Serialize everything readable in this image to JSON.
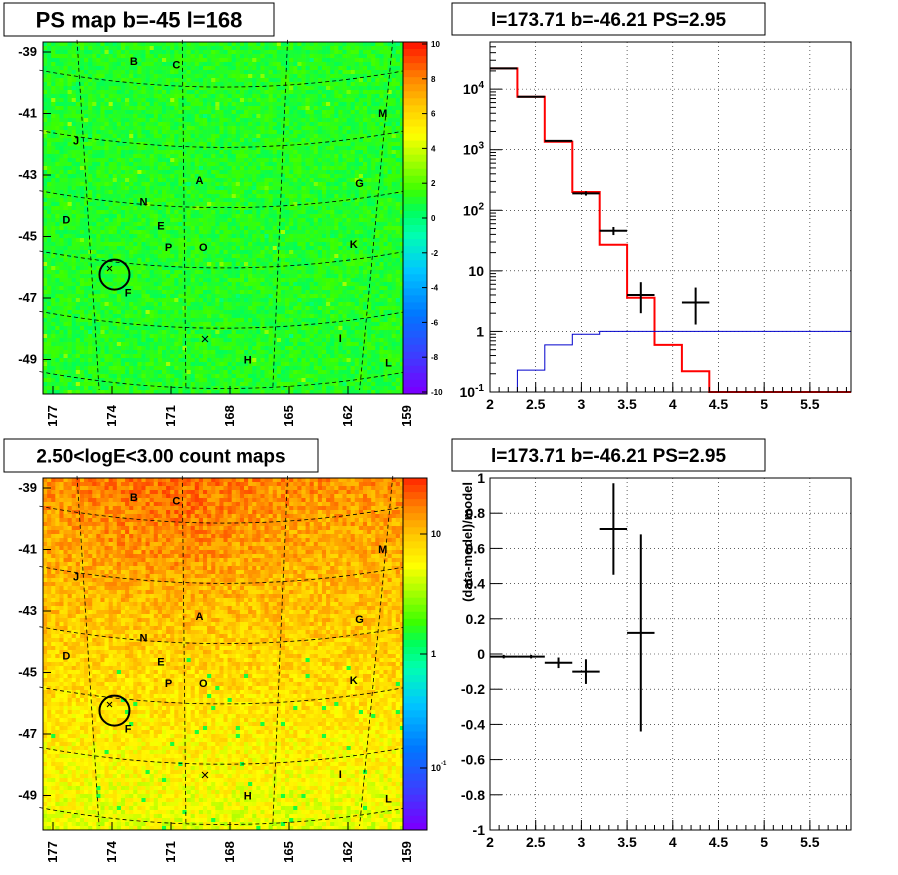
{
  "chart_data": [
    {
      "type": "heatmap",
      "title": "PS map b=-45 l=168",
      "x_tick_labels": [
        "177",
        "174",
        "171",
        "168",
        "165",
        "162",
        "159"
      ],
      "y_tick_labels": [
        "-39",
        "-41",
        "-43",
        "-45",
        "-47",
        "-49"
      ],
      "colorbar": {
        "min": -10,
        "max": 10,
        "scale": "linear",
        "tick_labels": [
          "10",
          "8",
          "6",
          "4",
          "2",
          "0",
          "-2",
          "-4",
          "-6",
          "-8",
          "-10"
        ]
      },
      "source_labels": [
        {
          "text": "B",
          "l": 172.6,
          "b": -39.2
        },
        {
          "text": "C",
          "l": 170.4,
          "b": -39.3
        },
        {
          "text": "M",
          "l": 159.7,
          "b": -40.9
        },
        {
          "text": "J",
          "l": 175.6,
          "b": -41.8
        },
        {
          "text": "A",
          "l": 169.2,
          "b": -43.1
        },
        {
          "text": "G",
          "l": 160.9,
          "b": -43.2
        },
        {
          "text": "N",
          "l": 172.1,
          "b": -43.8
        },
        {
          "text": "D",
          "l": 176.1,
          "b": -44.4
        },
        {
          "text": "E",
          "l": 171.2,
          "b": -44.6
        },
        {
          "text": "K",
          "l": 161.2,
          "b": -45.2
        },
        {
          "text": "P",
          "l": 170.8,
          "b": -45.3
        },
        {
          "text": "O",
          "l": 169.0,
          "b": -45.3
        },
        {
          "text": "F",
          "l": 172.9,
          "b": -46.8
        },
        {
          "text": "I",
          "l": 161.9,
          "b": -48.3
        },
        {
          "text": "H",
          "l": 166.7,
          "b": -49.0
        },
        {
          "text": "L",
          "l": 159.4,
          "b": -49.1
        }
      ],
      "marked_position": {
        "l": 173.71,
        "b": -46.21
      }
    },
    {
      "type": "line",
      "title": "l=173.71 b=-46.21 PS=2.95",
      "x_tick_labels": [
        "2",
        "2.5",
        "3",
        "3.5",
        "4",
        "4.5",
        "5",
        "5.5"
      ],
      "y_tick_labels": [
        "10^4",
        "10^3",
        "10^2",
        "10",
        "1",
        "10^-1"
      ],
      "xlim": [
        2.0,
        5.95
      ],
      "ylim": [
        0.1,
        60000
      ],
      "yscale": "log",
      "grid": true,
      "x_bin_edges": [
        2.0,
        2.3,
        2.6,
        2.9,
        3.2,
        3.5,
        3.8,
        4.1,
        4.4,
        4.7,
        5.0,
        5.3,
        5.6,
        5.95
      ],
      "series": [
        {
          "style": "red step",
          "values": [
            22000,
            7500,
            1350,
            200,
            27,
            3.6,
            0.6,
            0.22,
            0.1,
            0.1,
            0.1,
            0.1,
            0.1
          ]
        },
        {
          "style": "blue step",
          "values": [
            0.1,
            0.23,
            0.6,
            0.9,
            1.0,
            1.0,
            1.0,
            1.0,
            1.0,
            1.0,
            1.0,
            1.0,
            1.0
          ]
        },
        {
          "style": "black error points",
          "points": [
            {
              "x": 2.15,
              "y": 22000,
              "xerr": 0.15,
              "ylo": 21800,
              "yhi": 22200
            },
            {
              "x": 2.45,
              "y": 7500,
              "xerr": 0.15,
              "ylo": 7400,
              "yhi": 7600
            },
            {
              "x": 2.75,
              "y": 1400,
              "xerr": 0.15,
              "ylo": 1360,
              "yhi": 1440
            },
            {
              "x": 3.05,
              "y": 190,
              "xerr": 0.15,
              "ylo": 175,
              "yhi": 205
            },
            {
              "x": 3.35,
              "y": 46,
              "xerr": 0.15,
              "ylo": 39,
              "yhi": 53
            },
            {
              "x": 3.65,
              "y": 4.0,
              "xerr": 0.15,
              "ylo": 2.0,
              "yhi": 6.5
            },
            {
              "x": 4.25,
              "y": 3.0,
              "xerr": 0.15,
              "ylo": 1.3,
              "yhi": 5.3
            }
          ]
        }
      ]
    },
    {
      "type": "heatmap",
      "title": "2.50<logE<3.00 count maps",
      "x_tick_labels": [
        "177",
        "174",
        "171",
        "168",
        "165",
        "162",
        "159"
      ],
      "y_tick_labels": [
        "-39",
        "-41",
        "-43",
        "-45",
        "-47",
        "-49"
      ],
      "colorbar": {
        "scale": "log",
        "min": 0.03,
        "max": 30,
        "tick_labels": [
          "10",
          "1",
          "10^-1"
        ]
      },
      "source_labels": [
        {
          "text": "B",
          "l": 172.6,
          "b": -39.2
        },
        {
          "text": "C",
          "l": 170.4,
          "b": -39.3
        },
        {
          "text": "M",
          "l": 159.7,
          "b": -40.9
        },
        {
          "text": "J",
          "l": 175.6,
          "b": -41.8
        },
        {
          "text": "A",
          "l": 169.2,
          "b": -43.1
        },
        {
          "text": "G",
          "l": 160.9,
          "b": -43.2
        },
        {
          "text": "N",
          "l": 172.1,
          "b": -43.8
        },
        {
          "text": "D",
          "l": 176.1,
          "b": -44.4
        },
        {
          "text": "E",
          "l": 171.2,
          "b": -44.6
        },
        {
          "text": "K",
          "l": 161.2,
          "b": -45.2
        },
        {
          "text": "P",
          "l": 170.8,
          "b": -45.3
        },
        {
          "text": "O",
          "l": 169.0,
          "b": -45.3
        },
        {
          "text": "F",
          "l": 172.9,
          "b": -46.8
        },
        {
          "text": "I",
          "l": 161.9,
          "b": -48.3
        },
        {
          "text": "H",
          "l": 166.7,
          "b": -49.0
        },
        {
          "text": "L",
          "l": 159.4,
          "b": -49.1
        }
      ],
      "marked_position": {
        "l": 173.71,
        "b": -46.21
      }
    },
    {
      "type": "scatter",
      "title": "l=173.71 b=-46.21 PS=2.95",
      "ylabel": "(data-model)/model",
      "x_tick_labels": [
        "2",
        "2.5",
        "3",
        "3.5",
        "4",
        "4.5",
        "5",
        "5.5"
      ],
      "y_tick_labels": [
        "1",
        "0.8",
        "0.6",
        "0.4",
        "0.2",
        "0",
        "-0.2",
        "-0.4",
        "-0.6",
        "-0.8",
        "-1"
      ],
      "xlim": [
        2.0,
        5.95
      ],
      "ylim": [
        -1.0,
        1.0
      ],
      "grid": true,
      "points": [
        {
          "x": 2.15,
          "y": -0.015,
          "xerr": 0.15,
          "yerr": 0.01
        },
        {
          "x": 2.45,
          "y": -0.015,
          "xerr": 0.15,
          "yerr": 0.01
        },
        {
          "x": 2.75,
          "y": -0.05,
          "xerr": 0.15,
          "yerr": 0.03
        },
        {
          "x": 3.05,
          "y": -0.1,
          "xerr": 0.15,
          "yerr": 0.07
        },
        {
          "x": 3.35,
          "y": 0.71,
          "xerr": 0.15,
          "yerr": 0.26
        },
        {
          "x": 3.65,
          "y": 0.12,
          "xerr": 0.15,
          "yerr": 0.56
        }
      ]
    }
  ]
}
